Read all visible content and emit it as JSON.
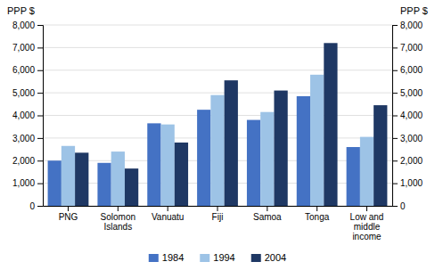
{
  "chart_data": {
    "type": "bar",
    "categories": [
      "PNG",
      "Solomon\nIslands",
      "Vanuatu",
      "Fiji",
      "Samoa",
      "Tonga",
      "Low and\nmiddle\nincome"
    ],
    "series": [
      {
        "name": "1984",
        "color": "#4472C4",
        "values": [
          2000,
          1900,
          3650,
          4250,
          3800,
          4850,
          2600
        ]
      },
      {
        "name": "1994",
        "color": "#9DC3E6",
        "values": [
          2650,
          2400,
          3600,
          4900,
          4150,
          5800,
          3050
        ]
      },
      {
        "name": "2004",
        "color": "#1F3864",
        "values": [
          2350,
          1650,
          2800,
          5550,
          5100,
          7200,
          4450
        ]
      }
    ],
    "ylabel": "PPP $",
    "y2label": "PPP $",
    "ylim": [
      0,
      8000
    ],
    "yticks": [
      0,
      {
        "value": 1000,
        "label": "1,000"
      },
      {
        "value": 2000,
        "label": "2,000"
      },
      {
        "value": 3000,
        "label": "3,000"
      },
      {
        "value": 4000,
        "label": "4,000"
      },
      {
        "value": 5000,
        "label": "5,000"
      },
      {
        "value": 6000,
        "label": "6,000"
      },
      {
        "value": 7000,
        "label": "7,000"
      },
      {
        "value": 8000,
        "label": "8,000"
      }
    ],
    "y2lim": [
      0,
      8000
    ],
    "y2ticks": [
      0,
      {
        "value": 1000,
        "label": "1,000"
      },
      {
        "value": 2000,
        "label": "2,000"
      },
      {
        "value": 3000,
        "label": "3,000"
      },
      {
        "value": 4000,
        "label": "4,000"
      },
      {
        "value": 5000,
        "label": "5,000"
      },
      {
        "value": 6000,
        "label": "6,000"
      },
      {
        "value": 7000,
        "label": "7,000"
      },
      {
        "value": 8000,
        "label": "8,000"
      }
    ],
    "grid": true,
    "legend": "bottom"
  }
}
